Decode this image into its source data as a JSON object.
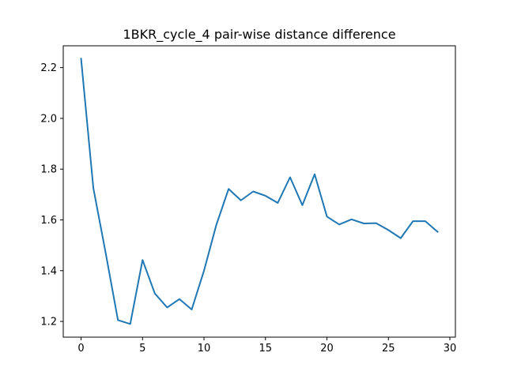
{
  "chart_data": {
    "type": "line",
    "title": "1BKR_cycle_4 pair-wise distance difference",
    "xlabel": "",
    "ylabel": "",
    "xlim": [
      -1.45,
      30.45
    ],
    "ylim": [
      1.138,
      2.286
    ],
    "xticks": [
      0,
      5,
      10,
      15,
      20,
      25,
      30
    ],
    "yticks": [
      1.2,
      1.4,
      1.6,
      1.8,
      2.0,
      2.2
    ],
    "xtick_labels": [
      "0",
      "5",
      "10",
      "15",
      "20",
      "25",
      "30"
    ],
    "ytick_labels": [
      "1.2",
      "1.4",
      "1.6",
      "1.8",
      "2.0",
      "2.2"
    ],
    "grid": false,
    "legend": "none",
    "series": [
      {
        "color": "#1f77b4",
        "x": [
          0,
          1,
          2,
          3,
          4,
          5,
          6,
          7,
          8,
          9,
          10,
          11,
          12,
          13,
          14,
          15,
          16,
          17,
          18,
          19,
          20,
          21,
          22,
          23,
          24,
          25,
          26,
          27,
          28,
          29
        ],
        "values": [
          2.235,
          1.725,
          1.47,
          1.205,
          1.19,
          1.442,
          1.31,
          1.255,
          1.288,
          1.247,
          1.4,
          1.58,
          1.722,
          1.677,
          1.712,
          1.695,
          1.667,
          1.768,
          1.658,
          1.78,
          1.613,
          1.582,
          1.602,
          1.586,
          1.587,
          1.56,
          1.528,
          1.595,
          1.595,
          1.553
        ]
      }
    ]
  }
}
